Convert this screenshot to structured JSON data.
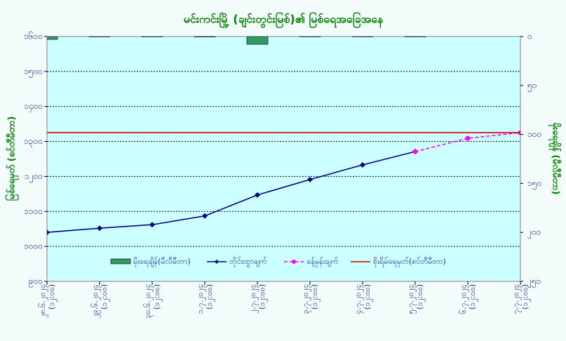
{
  "chart_data": {
    "type": "combo",
    "title": "မင်းကင်းမြို့ (ချင်းတွင်းမြစ်)၏ မြစ်ရေအခြေအနေ",
    "y_label": "မြစ်ရေမှတ် (စင်တီမီတာ)",
    "y2_label": "မိုးရေချိန် (မီလီမီတာ)",
    "categories": [
      "၂၈.၆.၂၀၂၄\n(၁၂:၀၀)",
      "၂၉.၆.၂၀၂၄\n(၁၂:၀၀)",
      "၃၀.၆.၂၀၂၄\n(၁၂:၀၀)",
      "၁.၇.၂၀၂၄\n(၁၂:၀၀)",
      "၂.၇.၂၀၂၄\n(၁၂:၀၀)",
      "၃.၇.၂၀၂၄\n(၁၂:၀၀)",
      "၄.၇.၂၀၂၄\n(၁၂:၀၀)",
      "၅.၇.၂၀၂၄\n(၁၂:၀၀)",
      "၆.၇.၂၀၂၄\n(၁၂:၀၀)",
      "၇.၇.၂၀၂၄\n(၁၂:၀၀)"
    ],
    "ylim": [
      900,
      1600
    ],
    "yticks": [
      {
        "value": 900,
        "label": "၉၀၀"
      },
      {
        "value": 1000,
        "label": "၁၀၀၀"
      },
      {
        "value": 1100,
        "label": "၁၁၀၀"
      },
      {
        "value": 1200,
        "label": "၁၂၀၀"
      },
      {
        "value": 1300,
        "label": "၁၃၀၀"
      },
      {
        "value": 1400,
        "label": "၁၄၀၀"
      },
      {
        "value": 1500,
        "label": "၁၅၀၀"
      },
      {
        "value": 1600,
        "label": "၁၆၀၀"
      }
    ],
    "y2lim": [
      250,
      0
    ],
    "y2ticks": [
      {
        "value": 0,
        "label": "၀"
      },
      {
        "value": 50,
        "label": "၅၀"
      },
      {
        "value": 100,
        "label": "၁၀၀"
      },
      {
        "value": 150,
        "label": "၁၅၀"
      },
      {
        "value": 200,
        "label": "၂၀၀"
      },
      {
        "value": 250,
        "label": "၂၅၀"
      }
    ],
    "grid": true,
    "series": [
      {
        "name": "မိုးရေချိန်(မီလီမီတာ)",
        "kind": "bar",
        "axis": "y2",
        "color": "#339966",
        "values": [
          3,
          0,
          0,
          0.5,
          8,
          0,
          0,
          0,
          null,
          null
        ]
      },
      {
        "name": "တိုင်းထွာချက်",
        "kind": "line",
        "color": "#000080",
        "marker": "diamond",
        "values": [
          1040,
          1052,
          1062,
          1087,
          1147,
          1191,
          1233,
          1271,
          null,
          null
        ]
      },
      {
        "name": "ခန့်မှန်းချက်",
        "kind": "line",
        "dashed": true,
        "color": "#ff00ff",
        "marker": "circle",
        "values": [
          null,
          null,
          null,
          null,
          null,
          null,
          null,
          1271,
          1309,
          1325
        ]
      },
      {
        "name": "စိုးရိမ်ရေမှတ်(စင်တီမီတာ)",
        "kind": "line",
        "color": "#cc0000",
        "values": [
          1325,
          1325,
          1325,
          1325,
          1325,
          1325,
          1325,
          1325,
          1325,
          1325
        ]
      }
    ]
  }
}
